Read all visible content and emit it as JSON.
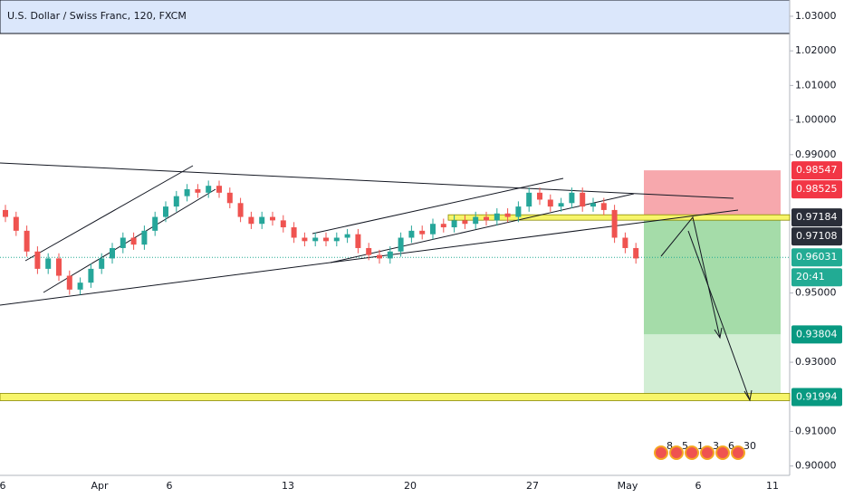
{
  "chart_data": {
    "type": "candlestick",
    "title": "U.S. Dollar / Swiss Franc, 120, FXCM",
    "up_color": "#26a69a",
    "down_color": "#ef5350",
    "ylim": [
      0.8973,
      1.0347
    ],
    "yticks": [
      {
        "value": 1.03,
        "label": "1.03000"
      },
      {
        "value": 1.02,
        "label": "1.02000"
      },
      {
        "value": 1.01,
        "label": "1.01000"
      },
      {
        "value": 1.0,
        "label": "1.00000"
      },
      {
        "value": 0.99,
        "label": "0.99000"
      },
      {
        "value": 0.95,
        "label": "0.95000"
      },
      {
        "value": 0.93,
        "label": "0.93000"
      },
      {
        "value": 0.91,
        "label": "0.91000"
      },
      {
        "value": 0.9,
        "label": "0.90000"
      }
    ],
    "x_labels": [
      "6",
      "Apr",
      "6",
      "13",
      "20",
      "27",
      "May",
      "6",
      "11"
    ],
    "open": [
      0.974,
      0.972,
      0.968,
      0.962,
      0.957,
      0.96,
      0.955,
      0.951,
      0.953,
      0.957,
      0.96,
      0.963,
      0.966,
      0.964,
      0.968,
      0.972,
      0.975,
      0.978,
      0.98,
      0.979,
      0.981,
      0.979,
      0.976,
      0.972,
      0.97,
      0.972,
      0.971,
      0.969,
      0.966,
      0.965,
      0.966,
      0.965,
      0.966,
      0.967,
      0.963,
      0.961,
      0.96,
      0.962,
      0.966,
      0.968,
      0.967,
      0.97,
      0.969,
      0.971,
      0.97,
      0.972,
      0.971,
      0.973,
      0.972,
      0.975,
      0.979,
      0.977,
      0.975,
      0.976,
      0.979,
      0.975,
      0.976,
      0.974,
      0.966,
      0.963
    ],
    "high": [
      0.9755,
      0.9735,
      0.9695,
      0.9635,
      0.9615,
      0.9615,
      0.9565,
      0.9545,
      0.9585,
      0.9615,
      0.9645,
      0.9675,
      0.9675,
      0.9695,
      0.9735,
      0.9765,
      0.9795,
      0.9815,
      0.9815,
      0.9825,
      0.9825,
      0.9805,
      0.9775,
      0.9735,
      0.9735,
      0.9735,
      0.9725,
      0.9705,
      0.9675,
      0.9675,
      0.9675,
      0.9675,
      0.9685,
      0.9685,
      0.9645,
      0.9625,
      0.9635,
      0.9675,
      0.9695,
      0.9695,
      0.9715,
      0.9715,
      0.9725,
      0.9725,
      0.9735,
      0.9735,
      0.9745,
      0.9745,
      0.9765,
      0.9805,
      0.9805,
      0.9785,
      0.9775,
      0.9805,
      0.9805,
      0.9775,
      0.9775,
      0.9755,
      0.9675,
      0.9645
    ],
    "low": [
      0.9705,
      0.9665,
      0.9605,
      0.9555,
      0.9555,
      0.9535,
      0.9495,
      0.9495,
      0.9515,
      0.9555,
      0.9585,
      0.9615,
      0.9625,
      0.9625,
      0.9665,
      0.9705,
      0.9735,
      0.9765,
      0.9775,
      0.9775,
      0.9775,
      0.9745,
      0.9705,
      0.9685,
      0.9685,
      0.9695,
      0.9675,
      0.9645,
      0.9635,
      0.9635,
      0.9635,
      0.9635,
      0.9645,
      0.9615,
      0.9595,
      0.9585,
      0.9585,
      0.9605,
      0.9645,
      0.9655,
      0.9655,
      0.9675,
      0.9675,
      0.9685,
      0.9685,
      0.9695,
      0.9695,
      0.9705,
      0.9705,
      0.9735,
      0.9755,
      0.9735,
      0.9735,
      0.9745,
      0.9735,
      0.9735,
      0.9725,
      0.9645,
      0.9615,
      0.9585
    ],
    "close": [
      0.972,
      0.968,
      0.962,
      0.957,
      0.96,
      0.955,
      0.951,
      0.953,
      0.957,
      0.96,
      0.963,
      0.966,
      0.964,
      0.968,
      0.972,
      0.975,
      0.978,
      0.98,
      0.979,
      0.981,
      0.979,
      0.976,
      0.972,
      0.97,
      0.972,
      0.971,
      0.969,
      0.966,
      0.965,
      0.966,
      0.965,
      0.966,
      0.967,
      0.963,
      0.961,
      0.96,
      0.962,
      0.966,
      0.968,
      0.967,
      0.97,
      0.969,
      0.971,
      0.97,
      0.972,
      0.971,
      0.973,
      0.972,
      0.975,
      0.979,
      0.977,
      0.975,
      0.976,
      0.979,
      0.975,
      0.976,
      0.974,
      0.966,
      0.963,
      0.96
    ],
    "price_tags": [
      {
        "value": 0.98547,
        "color": "#f23645"
      },
      {
        "value": 0.98525,
        "color": "#f23645"
      },
      {
        "value": 0.97184,
        "color": "#2a2e39"
      },
      {
        "value": 0.97108,
        "color": "#2a2e39"
      },
      {
        "value": 0.96031,
        "color": "#22ab94"
      },
      {
        "label": "20:41",
        "color": "#22ab94"
      },
      {
        "value": 0.93804,
        "color": "#089981"
      },
      {
        "value": 0.91994,
        "color": "#089981"
      }
    ],
    "events": [
      "8",
      "5",
      "1",
      "3",
      "6",
      "30"
    ]
  }
}
